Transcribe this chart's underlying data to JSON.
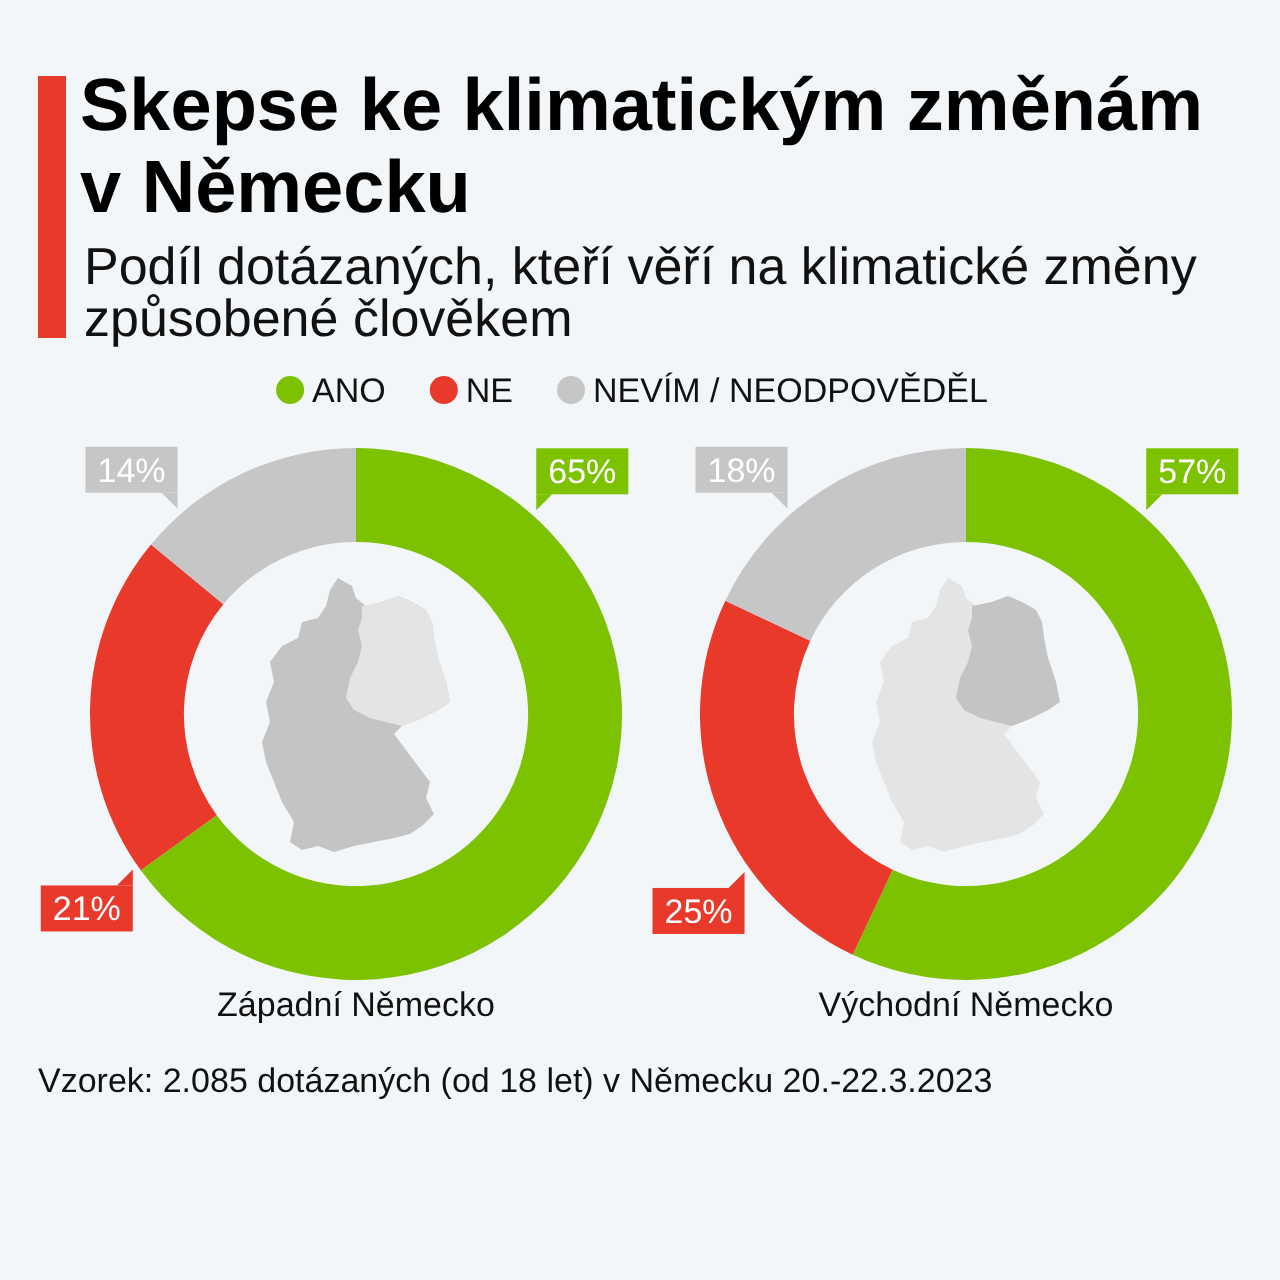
{
  "chart_data": [
    {
      "type": "donut",
      "title": "Skepse ke klimatickým změnám v Německu",
      "subtitle": "Podíl dotázaných, kteří věří na klimatické změny způsobené člověkem",
      "legend": "top",
      "xlabel": "Západní Německo",
      "categories": [
        "ANO",
        "NE",
        "NEVÍM / NEODPOVĚDĚL"
      ],
      "values": [
        65,
        21,
        14
      ],
      "colors": [
        "#7cc200",
        "#e8392b",
        "#c6c6c6"
      ],
      "value_labels": [
        "65%",
        "21%",
        "14%"
      ],
      "annotations": [
        "Vzorek: 2.085 dotázaných (od 18 let) v Německu 20.-22.3.2023"
      ]
    },
    {
      "type": "donut",
      "xlabel": "Východní Německo",
      "values": [
        57,
        25,
        18
      ],
      "colors": [
        "#7cc200",
        "#e8392b",
        "#c6c6c6"
      ],
      "value_labels": [
        "57%",
        "25%",
        "18%"
      ]
    }
  ]
}
